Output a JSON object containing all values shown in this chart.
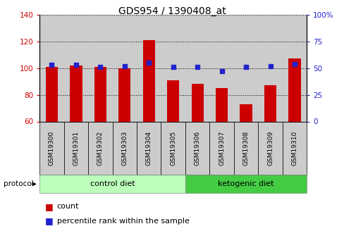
{
  "title": "GDS954 / 1390408_at",
  "samples": [
    "GSM19300",
    "GSM19301",
    "GSM19302",
    "GSM19303",
    "GSM19304",
    "GSM19305",
    "GSM19306",
    "GSM19307",
    "GSM19308",
    "GSM19309",
    "GSM19310"
  ],
  "counts": [
    101,
    102,
    101,
    100,
    121,
    91,
    88,
    85,
    73,
    87,
    107
  ],
  "percentile_ranks": [
    53,
    53,
    51,
    52,
    55,
    51,
    51,
    47,
    51,
    52,
    54
  ],
  "ylim_left": [
    60,
    140
  ],
  "ylim_right": [
    0,
    100
  ],
  "yticks_left": [
    60,
    80,
    100,
    120,
    140
  ],
  "yticks_right": [
    0,
    25,
    50,
    75,
    100
  ],
  "bar_color": "#cc0000",
  "dot_color": "#2222cc",
  "bar_width": 0.5,
  "control_n": 6,
  "ketogenic_n": 5,
  "control_label": "control diet",
  "ketogenic_label": "ketogenic diet",
  "protocol_label": "protocol",
  "count_legend": "count",
  "percentile_legend": "percentile rank within the sample",
  "control_band_color": "#bbffbb",
  "ketogenic_band_color": "#44cc44",
  "sample_bg_color": "#cccccc",
  "grid_linestyle": "dotted",
  "tick_color_left": "#cc0000",
  "tick_color_right": "#2222cc"
}
